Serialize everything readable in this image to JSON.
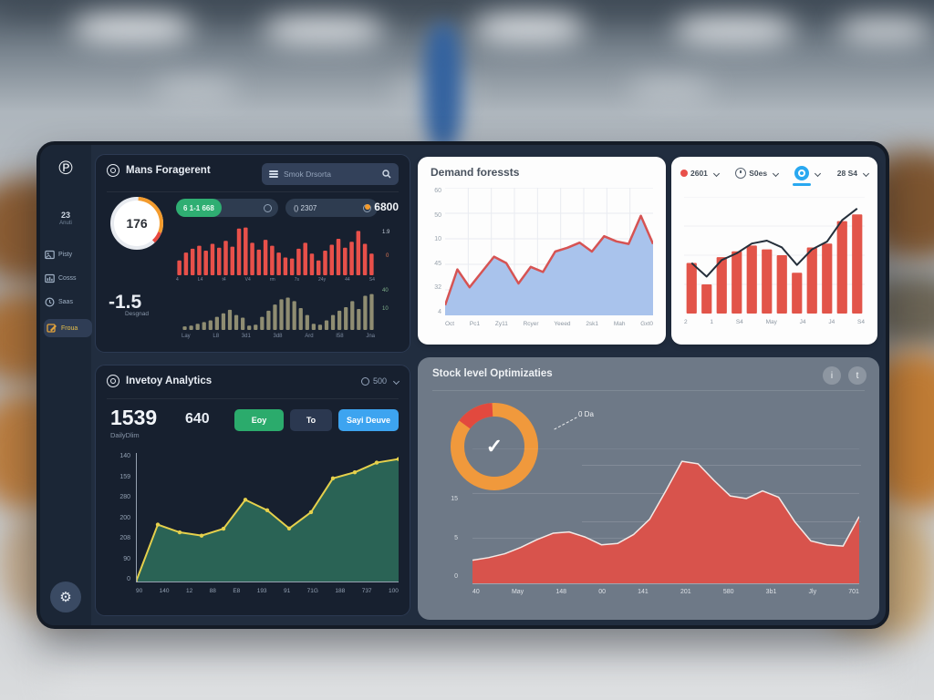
{
  "colors": {
    "accent_red": "#e8504a",
    "accent_orange": "#f39b2d",
    "accent_green": "#2fae72",
    "accent_blue": "#3da4f0",
    "accent_yellow": "#e5d04c",
    "panel_dark": "#17202f",
    "panel_slate": "#6e7987"
  },
  "sidebar": {
    "logo": "℗",
    "version_line1": "23",
    "version_line2": "Anuti",
    "items": [
      {
        "label": "Pisty"
      },
      {
        "label": "Cosss"
      },
      {
        "label": "Saas"
      },
      {
        "label": "Froua"
      }
    ],
    "footer_icon": "⚙"
  },
  "overview_panel": {
    "title": "Mans Foragerent",
    "search": {
      "placeholder": "Smok Drsorta"
    },
    "gauge": {
      "type": "donut",
      "thickness": 7,
      "max": 100,
      "slices": [
        {
          "color": "#e8ebf0",
          "from": 0,
          "value": 100
        },
        {
          "color": "#f39b2d",
          "from": 1,
          "value": 30
        },
        {
          "color": "#e8483f",
          "from": 31,
          "value": 7
        }
      ],
      "value": "176",
      "label": "Desgnad"
    },
    "badges": {
      "b1_chip": "6 1-1  668",
      "b2_label": "() 2307",
      "b3_value": "6800"
    },
    "red_bars": {
      "type": "bar",
      "color": "#e8504a",
      "max": 100,
      "barWidth": 0.62,
      "values": [
        30,
        46,
        54,
        60,
        50,
        64,
        56,
        70,
        58,
        95,
        97,
        66,
        52,
        72,
        60,
        46,
        36,
        34,
        54,
        66,
        44,
        30,
        50,
        62,
        74,
        56,
        68,
        90,
        64,
        44
      ],
      "x_ticks": [
        "4",
        "L4",
        "t4",
        "V4",
        "rm",
        "7s",
        "24y",
        "44",
        "S4"
      ],
      "right_ticks": [
        "1.9",
        "0"
      ]
    },
    "olive_bars": {
      "type": "bar",
      "color": "#8f8d72",
      "max": 100,
      "barWidth": 0.6,
      "values": [
        8,
        10,
        14,
        18,
        22,
        30,
        38,
        46,
        34,
        28,
        10,
        12,
        30,
        44,
        58,
        70,
        74,
        66,
        50,
        34,
        14,
        12,
        22,
        34,
        44,
        52,
        66,
        48,
        78,
        82
      ],
      "x_ticks": [
        "Lay",
        "L8",
        "3d1",
        "3d8",
        "Ard",
        "I58",
        "Jna"
      ],
      "right_ticks": [
        "40",
        "10"
      ]
    },
    "big_value": "-1.5"
  },
  "demand_panel": {
    "title": "Demand foressts",
    "chart": {
      "type": "area",
      "max": 100,
      "areaColor": "#a9c3ec",
      "lineColor": "#d65353",
      "lineWidth": 2.5,
      "gridX": 8,
      "gridY": 5,
      "gridColor": "#e9ecf1",
      "values": [
        8,
        36,
        22,
        34,
        46,
        41,
        25,
        38,
        34,
        50,
        53,
        57,
        50,
        62,
        58,
        56,
        78,
        56
      ]
    },
    "y_ticks": [
      "60",
      "50",
      "10",
      "45",
      "32",
      "4"
    ],
    "x_ticks": [
      "Oct",
      "Pc1",
      "Zy11",
      "Rcyer",
      "Yeeed",
      "2sk1",
      "Mah",
      "Gxt0"
    ]
  },
  "forecast_panel": {
    "filters": [
      {
        "label": "2601"
      },
      {
        "label": "S0es"
      },
      {
        "label": ""
      },
      {
        "label": "28 S4"
      }
    ],
    "chart": {
      "type": "bar-line",
      "max": 120,
      "color": "#e25449",
      "barWidth": 0.68,
      "lineColor": "#252f3b",
      "lineWidth": 2,
      "gridY": 4,
      "gridColor": "#eef0f3",
      "values": [
        52,
        30,
        58,
        64,
        70,
        66,
        60,
        42,
        68,
        72,
        95,
        102
      ],
      "line": [
        52,
        38,
        55,
        62,
        72,
        75,
        68,
        50,
        66,
        74,
        96,
        108
      ]
    },
    "x_ticks": [
      "2",
      "1",
      "S4",
      "May",
      "J4",
      "J4",
      "S4"
    ]
  },
  "inventory_panel": {
    "title": "Invetoy Analytics",
    "menu_value": "500",
    "stat1": {
      "value": "1539",
      "label": "DailyDlim"
    },
    "stat2": "640",
    "buttons": [
      {
        "label": "Eoy"
      },
      {
        "label": "To"
      },
      {
        "label": "Sayi Deuve"
      }
    ],
    "chart": {
      "type": "area",
      "max": 470,
      "areaColor": "#2a6355",
      "lineColor": "#e5d04c",
      "lineWidth": 2,
      "markers": true,
      "markerColor": "#e5d04c",
      "axis": true,
      "axisColor": "#97a2b1",
      "values": [
        2,
        210,
        182,
        170,
        195,
        300,
        262,
        196,
        255,
        378,
        400,
        435,
        448
      ]
    },
    "y_ticks": [
      "140",
      "159",
      "280",
      "200",
      "208",
      "90",
      "0"
    ],
    "x_ticks": [
      "90",
      "140",
      "12",
      "88",
      "E8",
      "193",
      "91",
      "71G",
      "188",
      "737",
      "100"
    ]
  },
  "stock_panel": {
    "title": "Stock level Optimizaties",
    "buttons": [
      "i",
      "t"
    ],
    "donut": {
      "type": "donut",
      "thickness": 15,
      "slices": [
        {
          "color": "#f0993c",
          "from": 0,
          "value": 100
        },
        {
          "color": "#e2493e",
          "from": 85,
          "value": 14
        }
      ]
    },
    "donut_center": "✓",
    "annotation": "0 Da",
    "chart": {
      "type": "area",
      "max": 105,
      "areaColor": "#d8534c",
      "lineColor": "#f3e9e6",
      "lineWidth": 1.5,
      "gridY": 3,
      "gridColor": "rgba(255,255,255,.14)",
      "values": [
        18,
        20,
        23,
        28,
        34,
        39,
        40,
        36,
        30,
        31,
        38,
        50,
        72,
        95,
        93,
        80,
        68,
        66,
        72,
        67,
        48,
        33,
        30,
        29,
        52
      ]
    },
    "y_ticks": [
      "15",
      "5",
      "0"
    ],
    "x_ticks": [
      "40",
      "May",
      "148",
      "00",
      "141",
      "201",
      "580",
      "3b1",
      "Jly",
      "701"
    ]
  }
}
